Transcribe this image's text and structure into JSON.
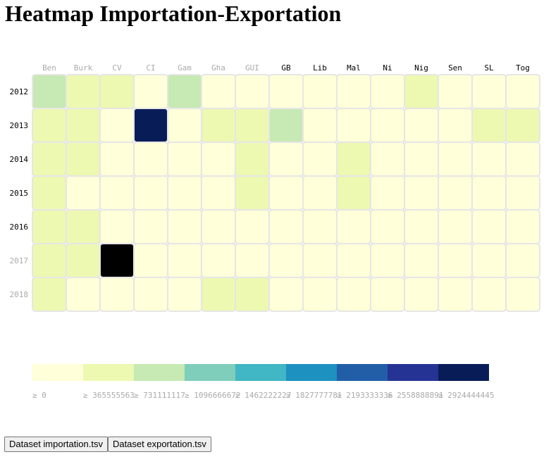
{
  "title": "Heatmap Importation-Exportation",
  "buttons": {
    "importation": "Dataset importation.tsv",
    "exportation": "Dataset exportation.tsv"
  },
  "colors": {
    "label_active": "#000000",
    "label_muted": "#aaaaaa",
    "cell_stroke": "#e6e6e6"
  },
  "chart_data": {
    "type": "heatmap",
    "title": "Heatmap Importation-Exportation",
    "columns": [
      "Ben",
      "Burk",
      "CV",
      "CI",
      "Gam",
      "Gha",
      "GUI",
      "GB",
      "Lib",
      "Mal",
      "Ni",
      "Nig",
      "Sen",
      "SL",
      "Tog"
    ],
    "rows": [
      "2012",
      "2013",
      "2014",
      "2015",
      "2016",
      "2017",
      "2018"
    ],
    "column_label_muted": [
      true,
      true,
      true,
      true,
      true,
      true,
      true,
      false,
      false,
      false,
      false,
      false,
      false,
      false,
      false
    ],
    "row_label_muted": [
      false,
      false,
      false,
      false,
      false,
      true,
      true
    ],
    "values": [
      [
        900000000,
        400000000,
        400000000,
        100000000,
        800000000,
        100000000,
        100000000,
        100000000,
        100000000,
        100000000,
        100000000,
        400000000,
        100000000,
        100000000,
        100000000
      ],
      [
        380000000,
        380000000,
        50000000,
        2950000000,
        50000000,
        380000000,
        380000000,
        850000000,
        50000000,
        50000000,
        50000000,
        50000000,
        50000000,
        380000000,
        380000000
      ],
      [
        380000000,
        380000000,
        50000000,
        50000000,
        50000000,
        50000000,
        380000000,
        50000000,
        50000000,
        380000000,
        50000000,
        50000000,
        50000000,
        50000000,
        50000000
      ],
      [
        380000000,
        50000000,
        50000000,
        50000000,
        50000000,
        50000000,
        380000000,
        50000000,
        50000000,
        380000000,
        50000000,
        50000000,
        50000000,
        50000000,
        50000000
      ],
      [
        380000000,
        380000000,
        50000000,
        50000000,
        50000000,
        50000000,
        50000000,
        50000000,
        50000000,
        50000000,
        50000000,
        50000000,
        50000000,
        50000000,
        50000000
      ],
      [
        380000000,
        380000000,
        3300000000,
        50000000,
        50000000,
        50000000,
        50000000,
        50000000,
        50000000,
        50000000,
        50000000,
        50000000,
        50000000,
        50000000,
        50000000
      ],
      [
        380000000,
        50000000,
        50000000,
        50000000,
        50000000,
        380000000,
        380000000,
        50000000,
        50000000,
        50000000,
        50000000,
        50000000,
        50000000,
        50000000,
        50000000
      ]
    ],
    "legend": {
      "labels": [
        "≥ 0",
        "≥ 365555563",
        "≥ 731111117",
        "≥ 1096666672",
        "≥ 1462222227",
        "≥ 1827777781",
        "≥ 2193333336",
        "≥ 2558888891",
        "≥ 2924444445"
      ],
      "thresholds": [
        0,
        365555563,
        731111117,
        1096666672,
        1462222227,
        1827777781,
        2193333336,
        2558888891,
        2924444445
      ],
      "colors": [
        "#ffffd9",
        "#edf8b1",
        "#c7e9b4",
        "#7fcdbb",
        "#41b6c4",
        "#1d91c0",
        "#225ea8",
        "#253494",
        "#081d58"
      ]
    },
    "overflow_color": "#000000",
    "overflow_above": 3200000000
  }
}
